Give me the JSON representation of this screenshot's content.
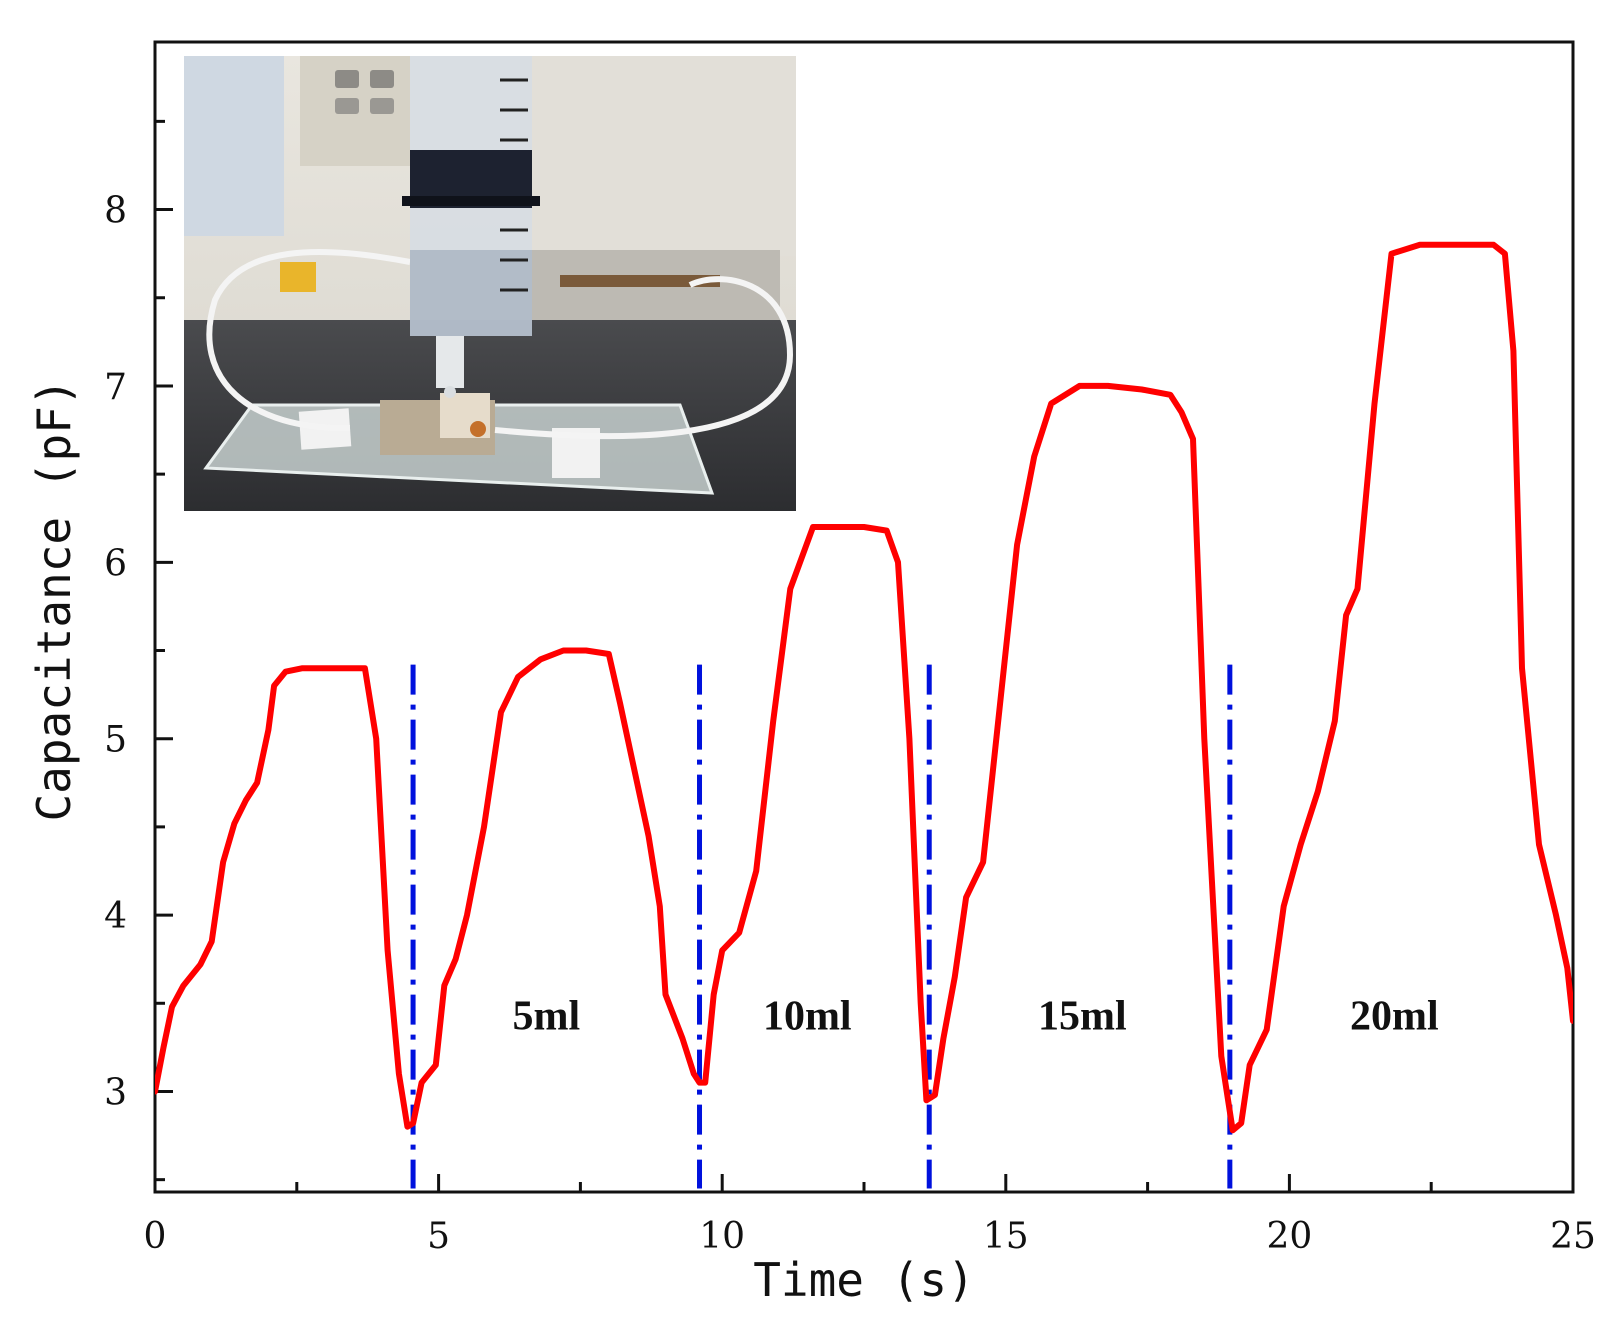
{
  "chart_data": {
    "type": "line",
    "title": "",
    "xlabel": "Time (s)",
    "ylabel": "Capacitance (pF)",
    "xlim": [
      0,
      25
    ],
    "ylim": [
      2.43,
      8.95
    ],
    "x_ticks": [
      0,
      5,
      10,
      15,
      20,
      25
    ],
    "y_ticks": [
      3,
      4,
      5,
      6,
      7,
      8
    ],
    "x_minor_step": 2.5,
    "y_minor_step": 0.5,
    "grid": false,
    "series": [
      {
        "color": "#ff0000",
        "x": [
          0,
          0.15,
          0.3,
          0.5,
          0.8,
          1.0,
          1.2,
          1.4,
          1.6,
          1.8,
          2.0,
          2.1,
          2.3,
          2.6,
          3.0,
          3.4,
          3.7,
          3.9,
          4.1,
          4.3,
          4.45,
          4.55,
          4.7,
          4.95,
          5.1,
          5.3,
          5.5,
          5.8,
          6.1,
          6.4,
          6.8,
          7.2,
          7.6,
          8.0,
          8.2,
          8.5,
          8.7,
          8.9,
          9.0,
          9.3,
          9.5,
          9.6,
          9.7,
          9.85,
          10.0,
          10.3,
          10.6,
          10.9,
          11.2,
          11.6,
          12.0,
          12.5,
          12.9,
          13.1,
          13.3,
          13.5,
          13.6,
          13.75,
          13.9,
          14.1,
          14.3,
          14.6,
          14.9,
          15.2,
          15.5,
          15.8,
          16.3,
          16.8,
          17.4,
          17.9,
          18.1,
          18.3,
          18.5,
          18.8,
          19.0,
          19.15,
          19.3,
          19.6,
          19.9,
          20.2,
          20.5,
          20.8,
          21.0,
          21.2,
          21.5,
          21.8,
          22.3,
          23.0,
          23.6,
          23.8,
          23.95,
          24.1,
          24.4,
          24.7,
          24.9,
          25.0
        ],
        "values": [
          3.0,
          3.25,
          3.48,
          3.6,
          3.72,
          3.85,
          4.3,
          4.52,
          4.65,
          4.75,
          5.05,
          5.3,
          5.38,
          5.4,
          5.4,
          5.4,
          5.4,
          5.0,
          3.8,
          3.1,
          2.8,
          2.82,
          3.05,
          3.15,
          3.6,
          3.75,
          4.0,
          4.5,
          5.15,
          5.35,
          5.45,
          5.5,
          5.5,
          5.48,
          5.2,
          4.75,
          4.45,
          4.05,
          3.55,
          3.3,
          3.1,
          3.05,
          3.05,
          3.55,
          3.8,
          3.9,
          4.25,
          5.1,
          5.85,
          6.2,
          6.2,
          6.2,
          6.18,
          6.0,
          5.0,
          3.5,
          2.95,
          2.98,
          3.3,
          3.65,
          4.1,
          4.3,
          5.2,
          6.1,
          6.6,
          6.9,
          7.0,
          7.0,
          6.98,
          6.95,
          6.85,
          6.7,
          5.0,
          3.2,
          2.78,
          2.82,
          3.15,
          3.35,
          4.05,
          4.4,
          4.7,
          5.1,
          5.7,
          5.85,
          6.9,
          7.75,
          7.8,
          7.8,
          7.8,
          7.75,
          7.2,
          5.4,
          4.4,
          4.0,
          3.7,
          3.4
        ]
      }
    ],
    "vlines": {
      "style": "dash-dot",
      "color": "#0011dd",
      "x": [
        4.55,
        9.6,
        13.65,
        18.95
      ],
      "y_range": [
        2.45,
        5.42
      ]
    },
    "annotations": [
      {
        "text": "5ml",
        "x": 6.9,
        "y": 3.35
      },
      {
        "text": "10ml",
        "x": 11.5,
        "y": 3.35
      },
      {
        "text": "15ml",
        "x": 16.35,
        "y": 3.35
      },
      {
        "text": "20ml",
        "x": 21.85,
        "y": 3.35
      }
    ],
    "inset": {
      "kind": "photograph",
      "icon": "syringe-on-sensor-photo"
    }
  }
}
